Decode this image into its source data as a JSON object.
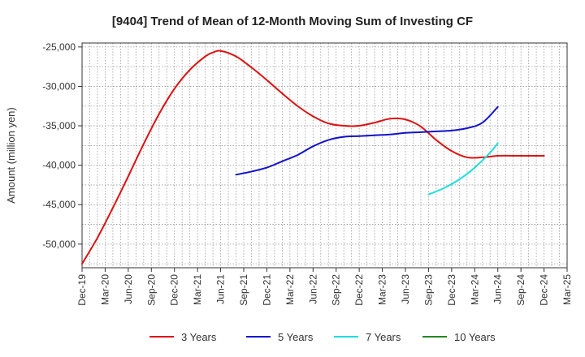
{
  "chart_data": {
    "type": "line",
    "title": "[9404]  Trend of Mean of 12-Month Moving Sum of Investing CF",
    "xlabel": "",
    "ylabel": "Amount (million yen)",
    "ylim": [
      -53000,
      -24500
    ],
    "y_ticks": [
      -25000,
      -30000,
      -35000,
      -40000,
      -45000,
      -50000
    ],
    "y_tick_labels": [
      "-25,000",
      "-30,000",
      "-35,000",
      "-40,000",
      "-45,000",
      "-50,000"
    ],
    "x_range_months": [
      0,
      63
    ],
    "x_tick_labels": [
      "Dec-19",
      "Mar-20",
      "Jun-20",
      "Sep-20",
      "Dec-20",
      "Mar-21",
      "Jun-21",
      "Sep-21",
      "Dec-21",
      "Mar-22",
      "Jun-22",
      "Sep-22",
      "Dec-22",
      "Mar-23",
      "Jun-23",
      "Sep-23",
      "Dec-23",
      "Mar-24",
      "Jun-24",
      "Sep-24",
      "Dec-24",
      "Mar-25"
    ],
    "grid": true,
    "legend_position": "bottom",
    "series": [
      {
        "name": "3 Years",
        "color": "#dd1111",
        "x": [
          0,
          2,
          4,
          6,
          8,
          10,
          12,
          14,
          16,
          17,
          18,
          20,
          22,
          24,
          26,
          28,
          30,
          32,
          34,
          36,
          38,
          40,
          42,
          44,
          46,
          48,
          50,
          52,
          54,
          56,
          58,
          60
        ],
        "values": [
          -52500,
          -49200,
          -45400,
          -41400,
          -37300,
          -33500,
          -30300,
          -27900,
          -26200,
          -25700,
          -25500,
          -26200,
          -27600,
          -29200,
          -30900,
          -32500,
          -33800,
          -34700,
          -35000,
          -35000,
          -34600,
          -34100,
          -34200,
          -35100,
          -36800,
          -38200,
          -39000,
          -39000,
          -38800,
          -38800,
          -38800,
          -38800
        ]
      },
      {
        "name": "5 Years",
        "color": "#1111cc",
        "x": [
          20,
          22,
          24,
          26,
          28,
          30,
          32,
          34,
          36,
          38,
          40,
          42,
          44,
          46,
          48,
          50,
          52,
          54
        ],
        "values": [
          -41200,
          -40800,
          -40300,
          -39500,
          -38700,
          -37600,
          -36800,
          -36400,
          -36300,
          -36200,
          -36100,
          -35900,
          -35800,
          -35700,
          -35600,
          -35300,
          -34600,
          -32600
        ]
      },
      {
        "name": "7 Years",
        "color": "#22dddd",
        "x": [
          45,
          47,
          49,
          51,
          53,
          54
        ],
        "values": [
          -43700,
          -42900,
          -41800,
          -40300,
          -38400,
          -37200
        ]
      },
      {
        "name": "10 Years",
        "color": "#228822",
        "x": [],
        "values": []
      }
    ]
  }
}
